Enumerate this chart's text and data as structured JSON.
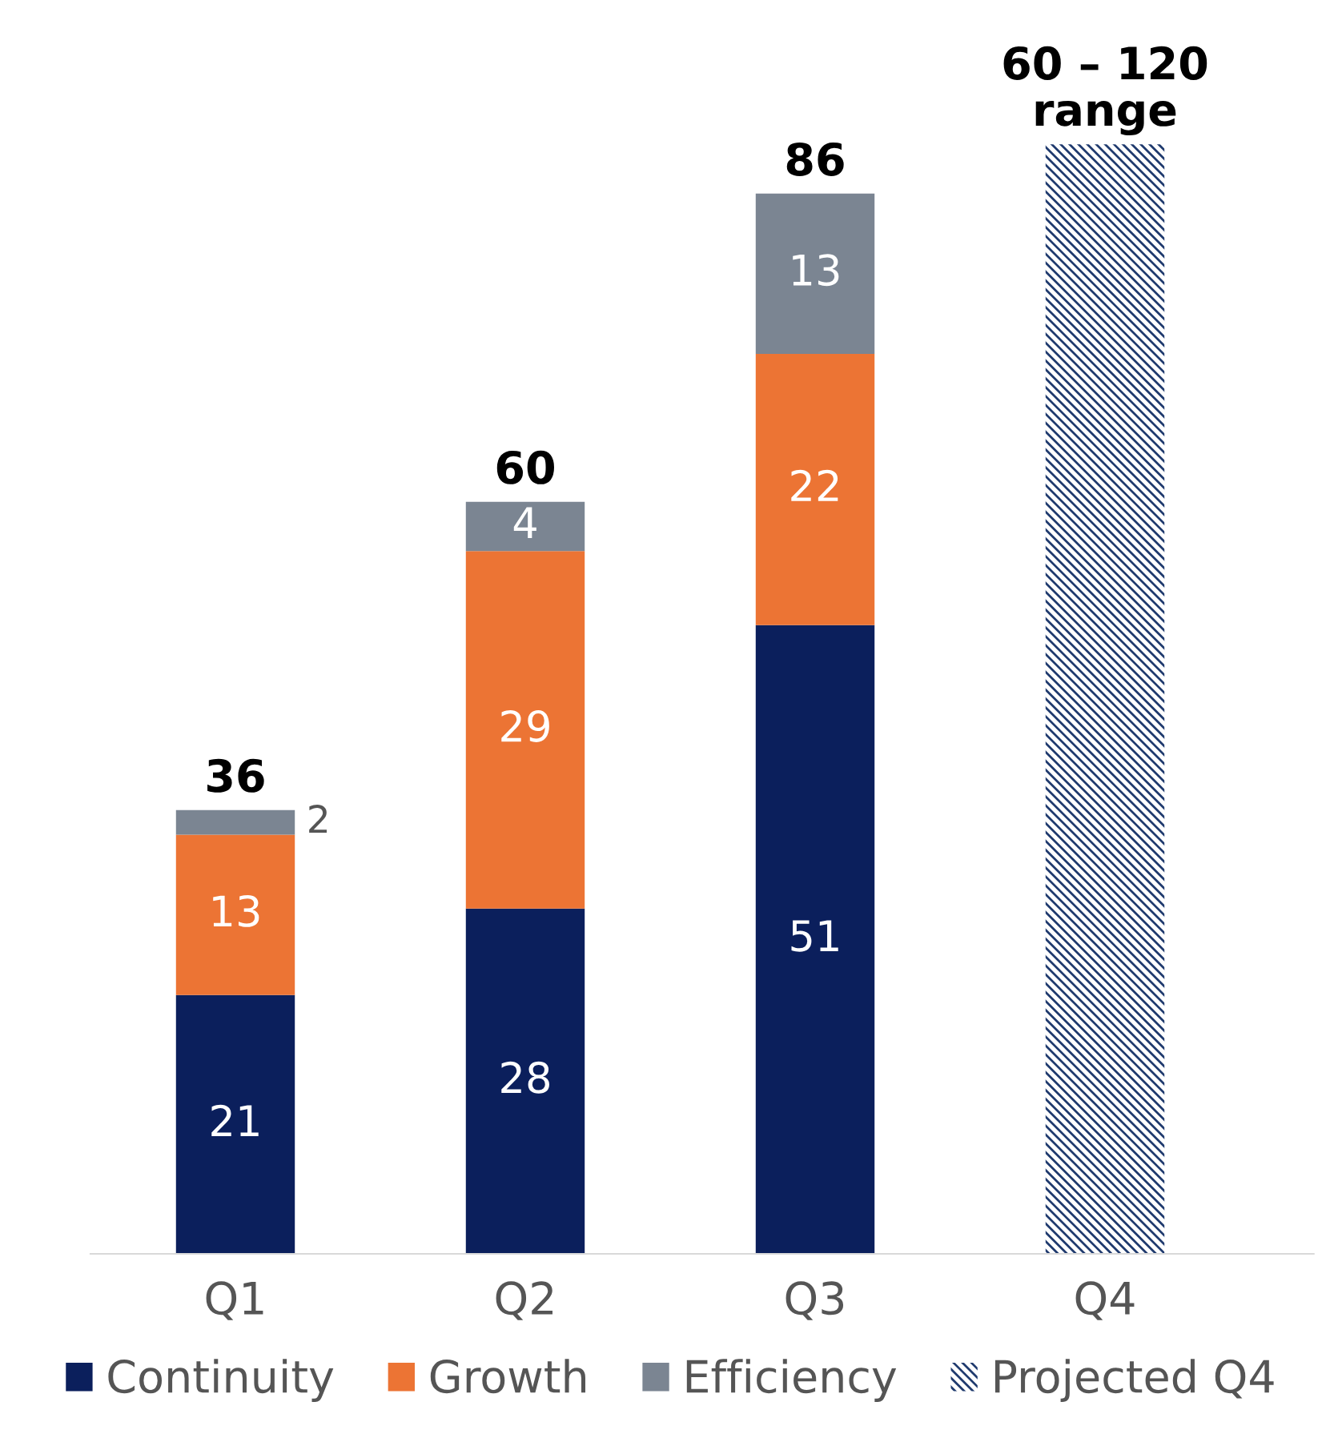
{
  "chart_data": {
    "type": "bar",
    "stacked": true,
    "categories": [
      "Q1",
      "Q2",
      "Q3",
      "Q4"
    ],
    "series": [
      {
        "name": "Continuity",
        "color": "#0b1f5c",
        "values": [
          21,
          28,
          51,
          null
        ],
        "value_labels": [
          "21",
          "28",
          "51",
          null
        ]
      },
      {
        "name": "Growth",
        "color": "#ec7434",
        "values": [
          13,
          29,
          22,
          null
        ],
        "value_labels": [
          "13",
          "29",
          "22",
          null
        ]
      },
      {
        "name": "Efficiency",
        "color": "#7b8592",
        "values": [
          2,
          4,
          13,
          null
        ],
        "value_labels": [
          "2",
          "4",
          "13",
          null
        ]
      },
      {
        "name": "Projected Q4",
        "color": "#1f3a6e",
        "values": [
          null,
          null,
          null,
          90
        ]
      }
    ],
    "totals": [
      "36",
      "60",
      "86",
      "60 – 120\nrange"
    ],
    "legend": "bottom",
    "grid": false
  }
}
